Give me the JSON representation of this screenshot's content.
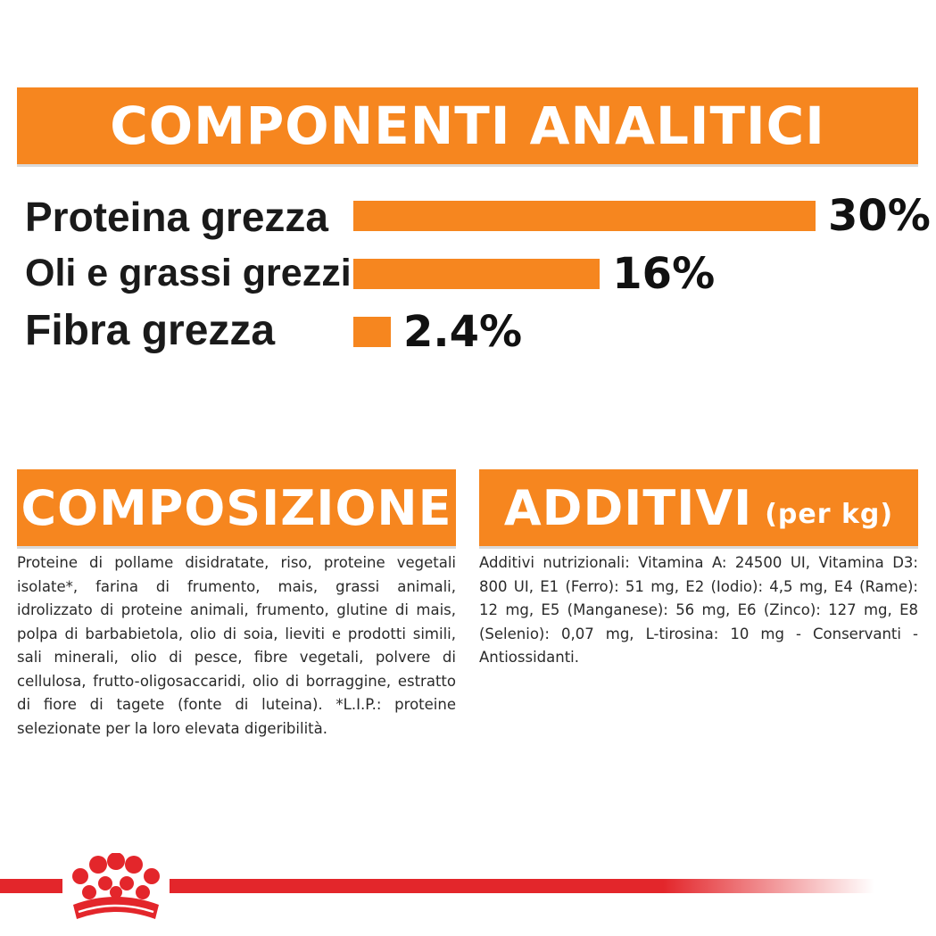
{
  "analytics": {
    "title": "COMPONENTI ANALITICI",
    "items": [
      {
        "label": "Proteina grezza",
        "value_text": "30%",
        "value": 30
      },
      {
        "label": "Oli e grassi grezzi",
        "value_text": "16%",
        "value": 16
      },
      {
        "label": "Fibra grezza",
        "value_text": "2.4%",
        "value": 2.4
      }
    ]
  },
  "composition": {
    "title": "COMPOSIZIONE",
    "text": "Proteine di pollame disidratate, riso, proteine vegetali isolate*, farina di frumento, mais, grassi animali, idrolizzato di proteine animali, frumento, glutine di mais, polpa di barbabietola, olio di soia, lieviti e prodotti simili, sali minerali, olio di pesce, fibre vegetali, polvere di cellulosa, frutto-oligosaccaridi, olio di borraggine, estratto di fiore di tagete (fonte di luteina). *L.I.P.: proteine selezionate per la loro elevata digeribilità."
  },
  "additives": {
    "title": "ADDITIVI",
    "subtitle": "(per kg)",
    "text": "Additivi nutrizionali: Vitamina A: 24500 UI, Vitamina D3: 800 UI, E1 (Ferro): 51 mg, E2 (Iodio): 4,5 mg, E4 (Rame): 12 mg, E5 (Manganese): 56 mg, E6 (Zinco): 127 mg, E8 (Selenio): 0,07 mg, L-tirosina: 10 mg - Conservanti - Antiossidanti."
  },
  "colors": {
    "accent": "#f6861f",
    "brand_red": "#e3262b"
  },
  "logo_icon": "crown-logo-icon"
}
